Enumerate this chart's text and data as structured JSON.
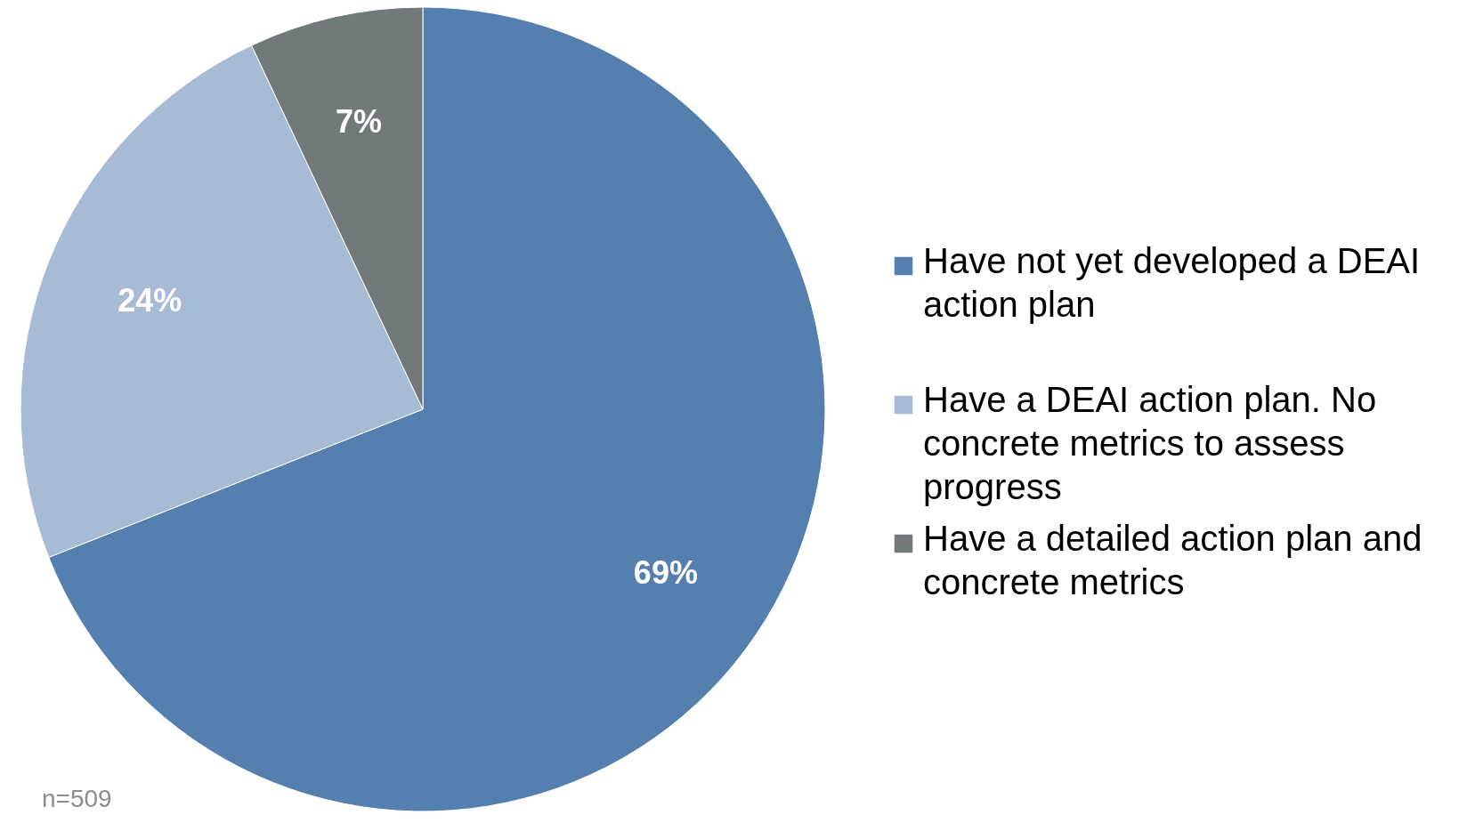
{
  "chart_data": {
    "type": "pie",
    "categories": [
      "Have not yet developed a DEAI action plan",
      "Have a DEAI action plan. No concrete metrics to assess progress",
      "Have a detailed action plan and concrete metrics"
    ],
    "values": [
      69,
      24,
      7
    ],
    "colors": [
      "#557fae",
      "#a7bbd4",
      "#72797a"
    ],
    "value_labels": [
      "69%",
      "24%",
      "7%"
    ],
    "legend": "right",
    "annotations": [
      "n=509"
    ]
  }
}
